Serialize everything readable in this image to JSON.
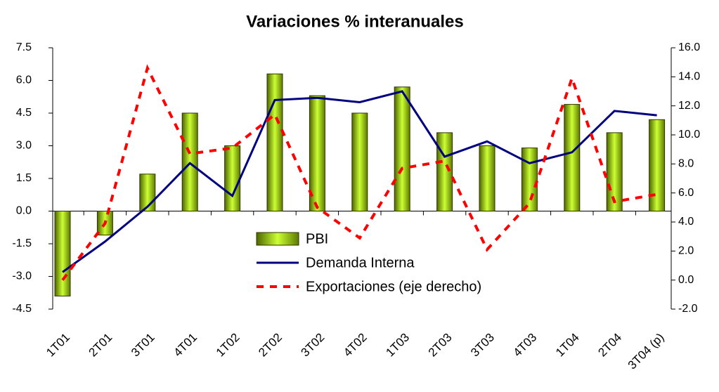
{
  "chart_data": {
    "type": "bar-line",
    "title": "Variaciones % interanuales",
    "categories": [
      "1T01",
      "2T01",
      "3T01",
      "4T01",
      "1T02",
      "2T02",
      "3T02",
      "4T02",
      "1T03",
      "2T03",
      "3T03",
      "4T03",
      "1T04",
      "2T04",
      "3T04 (p)"
    ],
    "series": [
      {
        "name": "PBI",
        "type": "bar",
        "color": "#99cc00",
        "values": [
          -3.9,
          -1.1,
          1.7,
          4.5,
          3.0,
          6.3,
          5.3,
          4.5,
          5.7,
          3.6,
          3.0,
          2.9,
          4.9,
          3.6,
          4.2
        ]
      },
      {
        "name": "Demanda Interna",
        "type": "line",
        "color": "#000080",
        "values": [
          -2.8,
          -1.4,
          0.2,
          2.2,
          0.7,
          5.1,
          5.2,
          5.0,
          5.5,
          2.5,
          3.2,
          2.2,
          2.7,
          4.6,
          4.4
        ]
      },
      {
        "name": "Exportaciones (eje derecho)",
        "type": "line",
        "dashed": true,
        "axis": "y2",
        "color": "#ff0000",
        "values": [
          0.0,
          3.9,
          14.6,
          8.7,
          9.1,
          11.4,
          5.0,
          2.9,
          7.7,
          8.2,
          2.1,
          5.3,
          13.9,
          5.4,
          5.9
        ]
      }
    ],
    "ylim": [
      -4.5,
      7.5
    ],
    "yticks": [
      -4.5,
      -1.5,
      1.5,
      4.5,
      7.5,
      {
        "value": -3,
        "label": "-3.0"
      },
      {
        "value": 0,
        "label": "0.0"
      },
      {
        "value": 3,
        "label": "3.0"
      },
      {
        "value": 6,
        "label": "6.0"
      }
    ],
    "y2lim": [
      -2,
      16
    ],
    "y2ticks": [
      {
        "value": -2,
        "label": "-2.0"
      },
      {
        "value": 0,
        "label": "0.0"
      },
      {
        "value": 2,
        "label": "2.0"
      },
      {
        "value": 4,
        "label": "4.0"
      },
      {
        "value": 6,
        "label": "6.0"
      },
      {
        "value": 8,
        "label": "8.0"
      },
      {
        "value": 10,
        "label": "10.0"
      },
      {
        "value": 12,
        "label": "12.0"
      },
      {
        "value": 14,
        "label": "14.0"
      },
      {
        "value": 16,
        "label": "16.0"
      }
    ],
    "legend": "center"
  }
}
